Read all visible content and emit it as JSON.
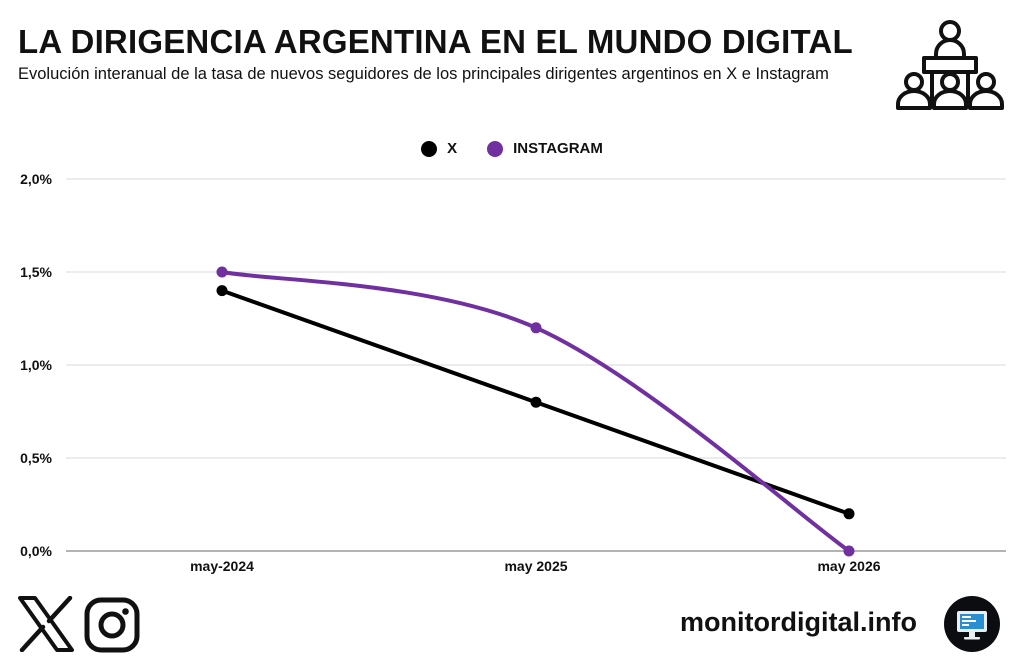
{
  "header": {
    "title": "LA DIRIGENCIA ARGENTINA EN EL MUNDO DIGITAL",
    "subtitle": "Evolución interanual de la tasa de nuevos seguidores de los principales dirigentes argentinos en X e Instagram"
  },
  "footer": {
    "site": "monitordigital.info"
  },
  "icons": {
    "header_icon": "audience-presenter-icon",
    "footer_icons": [
      "x-logo-icon",
      "instagram-logo-icon",
      "monitor-icon"
    ]
  },
  "chart_data": {
    "type": "line",
    "categories": [
      "may-2024",
      "may 2025",
      "may 2026"
    ],
    "series": [
      {
        "name": "X",
        "color": "#000000",
        "values": [
          1.4,
          0.8,
          0.2
        ],
        "smooth": false
      },
      {
        "name": "INSTAGRAM",
        "color": "#7030a0",
        "values": [
          1.5,
          1.2,
          0.0
        ],
        "smooth": true
      }
    ],
    "y_ticks": [
      "0,0%",
      "0,5%",
      "1,0%",
      "1,5%",
      "2,0%"
    ],
    "y_tick_values": [
      0,
      0.5,
      1.0,
      1.5,
      2.0
    ],
    "ylim": [
      0,
      2.0
    ],
    "grid": true,
    "legend_position": "top-center"
  }
}
